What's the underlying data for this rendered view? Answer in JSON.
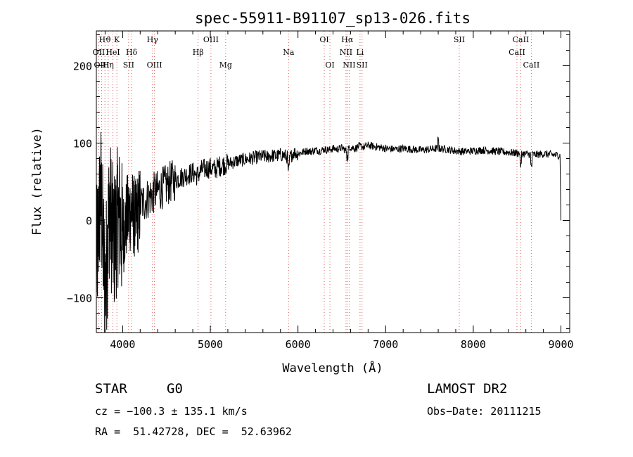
{
  "chart_data": {
    "type": "line",
    "title": "spec-55911-B91107_sp13-026.fits",
    "xlabel": "Wavelength (Å)",
    "ylabel": "Flux (relative)",
    "xlim": [
      3700,
      9100
    ],
    "ylim": [
      -145,
      245
    ],
    "x_ticks": [
      4000,
      5000,
      6000,
      7000,
      8000,
      9000
    ],
    "y_ticks": [
      -100,
      0,
      100,
      200
    ],
    "grid": false,
    "series": [
      {
        "color": "#000000",
        "x": [
          3700,
          3750,
          3800,
          3850,
          3900,
          3950,
          4000,
          4050,
          4100,
          4150,
          4200,
          4250,
          4300,
          4350,
          4400,
          4450,
          4500,
          4550,
          4600,
          4650,
          4700,
          4750,
          4800,
          4850,
          4900,
          4950,
          5000,
          5050,
          5100,
          5150,
          5200,
          5250,
          5300,
          5350,
          5400,
          5450,
          5500,
          5550,
          5600,
          5650,
          5700,
          5750,
          5800,
          5850,
          5900,
          5950,
          6000,
          6050,
          6100,
          6150,
          6200,
          6250,
          6300,
          6350,
          6400,
          6450,
          6500,
          6550,
          6600,
          6650,
          6700,
          6750,
          6800,
          6850,
          6900,
          6950,
          7000,
          7100,
          7200,
          7300,
          7400,
          7500,
          7600,
          7700,
          7800,
          7900,
          8000,
          8100,
          8200,
          8300,
          8400,
          8500,
          8600,
          8700,
          8800,
          8900,
          8990,
          9000
        ],
        "y": [
          -60,
          40,
          -90,
          20,
          -30,
          10,
          -20,
          5,
          15,
          0,
          20,
          25,
          30,
          35,
          38,
          42,
          45,
          50,
          52,
          55,
          57,
          60,
          62,
          58,
          65,
          67,
          68,
          66,
          70,
          72,
          73,
          75,
          77,
          78,
          79,
          80,
          81,
          82,
          83,
          82,
          84,
          83,
          85,
          84,
          80,
          88,
          86,
          88,
          90,
          89,
          91,
          90,
          92,
          91,
          93,
          92,
          94,
          90,
          95,
          93,
          96,
          95,
          97,
          96,
          95,
          94,
          93,
          92,
          93,
          92,
          91,
          92,
          93,
          92,
          90,
          89,
          90,
          91,
          90,
          89,
          88,
          87,
          86,
          85,
          86,
          85,
          84,
          0
        ]
      }
    ],
    "lines": [
      {
        "name": "Hϑ",
        "x": 3798,
        "row": 0
      },
      {
        "name": "K",
        "x": 3934,
        "row": 0
      },
      {
        "name": "Hγ",
        "x": 4340,
        "row": 0
      },
      {
        "name": "OIII",
        "x": 5007,
        "row": 0
      },
      {
        "name": "OI",
        "x": 6300,
        "row": 0
      },
      {
        "name": "Hα",
        "x": 6563,
        "row": 0
      },
      {
        "name": "SII",
        "x": 7840,
        "row": 0
      },
      {
        "name": "CaII",
        "x": 8542,
        "row": 0
      },
      {
        "name": "OII",
        "x": 3727,
        "row": 1
      },
      {
        "name": "HeI",
        "x": 3889,
        "row": 1
      },
      {
        "name": "Hδ",
        "x": 4102,
        "row": 1
      },
      {
        "name": "Hβ",
        "x": 4861,
        "row": 1
      },
      {
        "name": "Na",
        "x": 5893,
        "row": 1
      },
      {
        "name": "NII",
        "x": 6548,
        "row": 1
      },
      {
        "name": "Li",
        "x": 6708,
        "row": 1
      },
      {
        "name": "CaII",
        "x": 8498,
        "row": 1
      },
      {
        "name": "OIII",
        "x": 3760,
        "row": 2
      },
      {
        "name": "Hη",
        "x": 3835,
        "row": 2
      },
      {
        "name": "SII",
        "x": 4068,
        "row": 2
      },
      {
        "name": "OIII",
        "x": 4363,
        "row": 2
      },
      {
        "name": "Mg",
        "x": 5175,
        "row": 2
      },
      {
        "name": "OI",
        "x": 6364,
        "row": 2
      },
      {
        "name": "NII",
        "x": 6584,
        "row": 2
      },
      {
        "name": "SII",
        "x": 6731,
        "row": 2
      },
      {
        "name": "CaII",
        "x": 8662,
        "row": 2
      }
    ]
  },
  "info": {
    "object_class": "STAR",
    "subclass": "G0",
    "survey": "LAMOST DR2",
    "cz": "cz = −100.3 ± 135.1 km/s",
    "obs_date": "Obs−Date: 20111215",
    "coords": "RA =  51.42728, DEC =  52.63962"
  }
}
